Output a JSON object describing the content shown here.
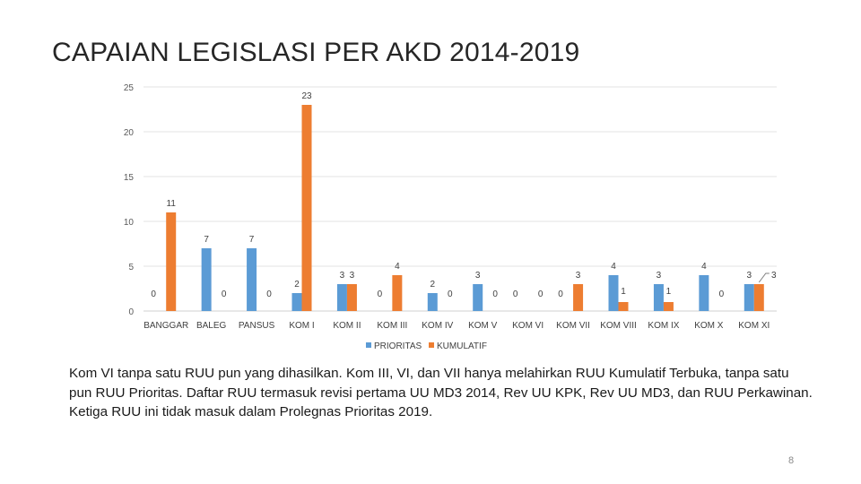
{
  "slide": {
    "title": "CAPAIAN LEGISLASI PER AKD 2014-2019",
    "caption": "Kom VI tanpa satu RUU pun yang dihasilkan. Kom III, VI, dan VII hanya melahirkan RUU Kumulatif Terbuka, tanpa satu pun RUU Prioritas. Daftar RUU termasuk revisi pertama UU MD3 2014, Rev UU KPK, Rev UU MD3, dan RUU Perkawinan. Ketiga RUU ini tidak masuk dalam Prolegnas Prioritas 2019.",
    "page_number": "8"
  },
  "chart_data": {
    "type": "bar",
    "title": "",
    "xlabel": "",
    "ylabel": "",
    "ylim": [
      0,
      25
    ],
    "yticks": [
      0,
      5,
      10,
      15,
      20,
      25
    ],
    "grid": true,
    "legend_position": "bottom",
    "categories": [
      "BANGGAR",
      "BALEG",
      "PANSUS",
      "KOM I",
      "KOM II",
      "KOM III",
      "KOM IV",
      "KOM V",
      "KOM VI",
      "KOM VII",
      "KOM VIII",
      "KOM IX",
      "KOM X",
      "KOM XI"
    ],
    "series": [
      {
        "name": "PRIORITAS",
        "color": "#5b9bd5",
        "values": [
          0,
          7,
          7,
          2,
          3,
          0,
          2,
          3,
          0,
          0,
          4,
          3,
          4,
          3
        ]
      },
      {
        "name": "KUMULATIF",
        "color": "#ed7d31",
        "values": [
          11,
          0,
          0,
          23,
          3,
          4,
          0,
          0,
          0,
          3,
          1,
          1,
          0,
          3
        ]
      }
    ]
  }
}
